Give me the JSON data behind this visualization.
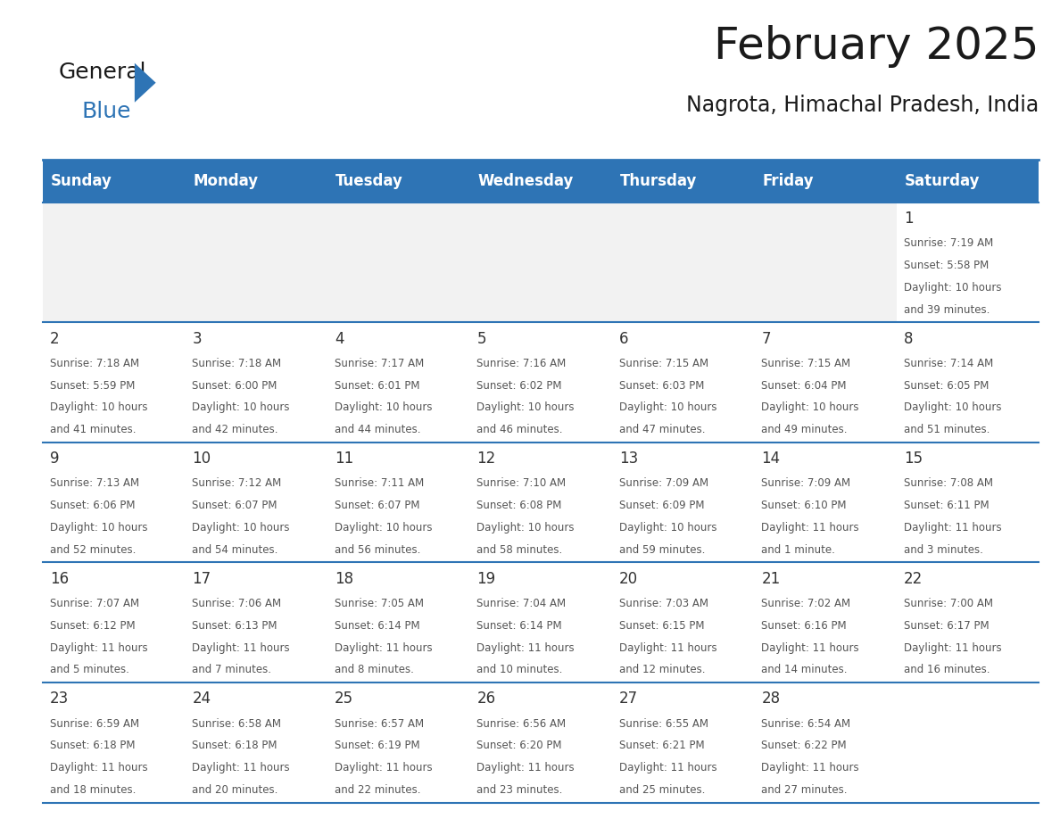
{
  "title": "February 2025",
  "subtitle": "Nagrota, Himachal Pradesh, India",
  "header_color": "#2e74b5",
  "header_text_color": "#ffffff",
  "border_color": "#2e74b5",
  "text_color": "#333333",
  "cell_text_color": "#555555",
  "day_headers": [
    "Sunday",
    "Monday",
    "Tuesday",
    "Wednesday",
    "Thursday",
    "Friday",
    "Saturday"
  ],
  "calendar_data": [
    [
      null,
      null,
      null,
      null,
      null,
      null,
      {
        "day": 1,
        "sunrise": "7:19 AM",
        "sunset": "5:58 PM",
        "daylight_line1": "Daylight: 10 hours",
        "daylight_line2": "and 39 minutes."
      }
    ],
    [
      {
        "day": 2,
        "sunrise": "7:18 AM",
        "sunset": "5:59 PM",
        "daylight_line1": "Daylight: 10 hours",
        "daylight_line2": "and 41 minutes."
      },
      {
        "day": 3,
        "sunrise": "7:18 AM",
        "sunset": "6:00 PM",
        "daylight_line1": "Daylight: 10 hours",
        "daylight_line2": "and 42 minutes."
      },
      {
        "day": 4,
        "sunrise": "7:17 AM",
        "sunset": "6:01 PM",
        "daylight_line1": "Daylight: 10 hours",
        "daylight_line2": "and 44 minutes."
      },
      {
        "day": 5,
        "sunrise": "7:16 AM",
        "sunset": "6:02 PM",
        "daylight_line1": "Daylight: 10 hours",
        "daylight_line2": "and 46 minutes."
      },
      {
        "day": 6,
        "sunrise": "7:15 AM",
        "sunset": "6:03 PM",
        "daylight_line1": "Daylight: 10 hours",
        "daylight_line2": "and 47 minutes."
      },
      {
        "day": 7,
        "sunrise": "7:15 AM",
        "sunset": "6:04 PM",
        "daylight_line1": "Daylight: 10 hours",
        "daylight_line2": "and 49 minutes."
      },
      {
        "day": 8,
        "sunrise": "7:14 AM",
        "sunset": "6:05 PM",
        "daylight_line1": "Daylight: 10 hours",
        "daylight_line2": "and 51 minutes."
      }
    ],
    [
      {
        "day": 9,
        "sunrise": "7:13 AM",
        "sunset": "6:06 PM",
        "daylight_line1": "Daylight: 10 hours",
        "daylight_line2": "and 52 minutes."
      },
      {
        "day": 10,
        "sunrise": "7:12 AM",
        "sunset": "6:07 PM",
        "daylight_line1": "Daylight: 10 hours",
        "daylight_line2": "and 54 minutes."
      },
      {
        "day": 11,
        "sunrise": "7:11 AM",
        "sunset": "6:07 PM",
        "daylight_line1": "Daylight: 10 hours",
        "daylight_line2": "and 56 minutes."
      },
      {
        "day": 12,
        "sunrise": "7:10 AM",
        "sunset": "6:08 PM",
        "daylight_line1": "Daylight: 10 hours",
        "daylight_line2": "and 58 minutes."
      },
      {
        "day": 13,
        "sunrise": "7:09 AM",
        "sunset": "6:09 PM",
        "daylight_line1": "Daylight: 10 hours",
        "daylight_line2": "and 59 minutes."
      },
      {
        "day": 14,
        "sunrise": "7:09 AM",
        "sunset": "6:10 PM",
        "daylight_line1": "Daylight: 11 hours",
        "daylight_line2": "and 1 minute."
      },
      {
        "day": 15,
        "sunrise": "7:08 AM",
        "sunset": "6:11 PM",
        "daylight_line1": "Daylight: 11 hours",
        "daylight_line2": "and 3 minutes."
      }
    ],
    [
      {
        "day": 16,
        "sunrise": "7:07 AM",
        "sunset": "6:12 PM",
        "daylight_line1": "Daylight: 11 hours",
        "daylight_line2": "and 5 minutes."
      },
      {
        "day": 17,
        "sunrise": "7:06 AM",
        "sunset": "6:13 PM",
        "daylight_line1": "Daylight: 11 hours",
        "daylight_line2": "and 7 minutes."
      },
      {
        "day": 18,
        "sunrise": "7:05 AM",
        "sunset": "6:14 PM",
        "daylight_line1": "Daylight: 11 hours",
        "daylight_line2": "and 8 minutes."
      },
      {
        "day": 19,
        "sunrise": "7:04 AM",
        "sunset": "6:14 PM",
        "daylight_line1": "Daylight: 11 hours",
        "daylight_line2": "and 10 minutes."
      },
      {
        "day": 20,
        "sunrise": "7:03 AM",
        "sunset": "6:15 PM",
        "daylight_line1": "Daylight: 11 hours",
        "daylight_line2": "and 12 minutes."
      },
      {
        "day": 21,
        "sunrise": "7:02 AM",
        "sunset": "6:16 PM",
        "daylight_line1": "Daylight: 11 hours",
        "daylight_line2": "and 14 minutes."
      },
      {
        "day": 22,
        "sunrise": "7:00 AM",
        "sunset": "6:17 PM",
        "daylight_line1": "Daylight: 11 hours",
        "daylight_line2": "and 16 minutes."
      }
    ],
    [
      {
        "day": 23,
        "sunrise": "6:59 AM",
        "sunset": "6:18 PM",
        "daylight_line1": "Daylight: 11 hours",
        "daylight_line2": "and 18 minutes."
      },
      {
        "day": 24,
        "sunrise": "6:58 AM",
        "sunset": "6:18 PM",
        "daylight_line1": "Daylight: 11 hours",
        "daylight_line2": "and 20 minutes."
      },
      {
        "day": 25,
        "sunrise": "6:57 AM",
        "sunset": "6:19 PM",
        "daylight_line1": "Daylight: 11 hours",
        "daylight_line2": "and 22 minutes."
      },
      {
        "day": 26,
        "sunrise": "6:56 AM",
        "sunset": "6:20 PM",
        "daylight_line1": "Daylight: 11 hours",
        "daylight_line2": "and 23 minutes."
      },
      {
        "day": 27,
        "sunrise": "6:55 AM",
        "sunset": "6:21 PM",
        "daylight_line1": "Daylight: 11 hours",
        "daylight_line2": "and 25 minutes."
      },
      {
        "day": 28,
        "sunrise": "6:54 AM",
        "sunset": "6:22 PM",
        "daylight_line1": "Daylight: 11 hours",
        "daylight_line2": "and 27 minutes."
      },
      null
    ]
  ],
  "logo_general_color": "#1a1a1a",
  "logo_blue_color": "#2e74b5",
  "logo_triangle_color": "#2e74b5",
  "title_fontsize": 36,
  "subtitle_fontsize": 17,
  "header_fontsize": 12,
  "day_num_fontsize": 12,
  "cell_text_fontsize": 8.5,
  "logo_fontsize": 18
}
